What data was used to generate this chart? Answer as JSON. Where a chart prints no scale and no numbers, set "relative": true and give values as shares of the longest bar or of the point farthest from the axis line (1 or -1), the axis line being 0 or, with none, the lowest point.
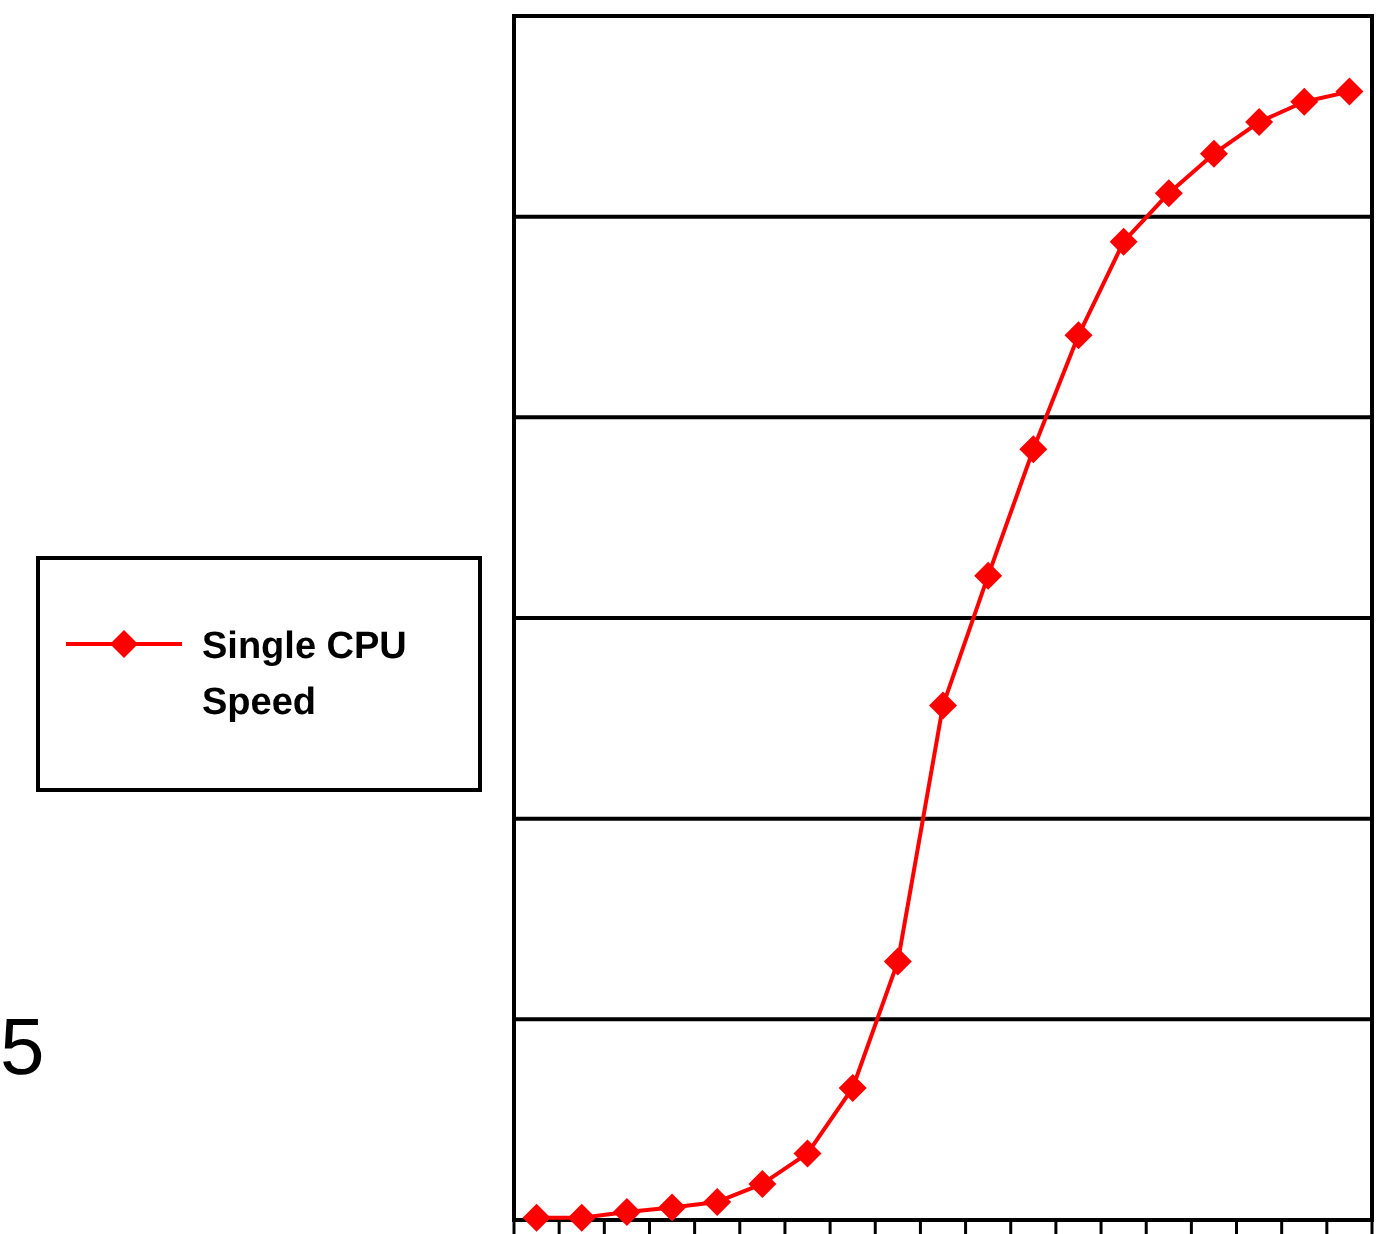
{
  "chart_data": {
    "type": "line",
    "relative": true,
    "categories": [
      null,
      null,
      null,
      null,
      null,
      null,
      null,
      null,
      null,
      null,
      null,
      null,
      null,
      null,
      null,
      null,
      null,
      null,
      null
    ],
    "series": [
      {
        "name": "Single CPU Speed",
        "color": "#ff0000",
        "values": [
          0.002,
          0.002,
          0.007,
          0.011,
          0.016,
          0.032,
          0.059,
          0.117,
          0.229,
          0.456,
          0.571,
          0.683,
          0.784,
          0.867,
          0.91,
          0.945,
          0.973,
          0.991,
          1
        ]
      }
    ],
    "marker": "diamond",
    "line_style": "solid",
    "grid": "y",
    "legend": "left",
    "annotations": [
      "5"
    ]
  }
}
